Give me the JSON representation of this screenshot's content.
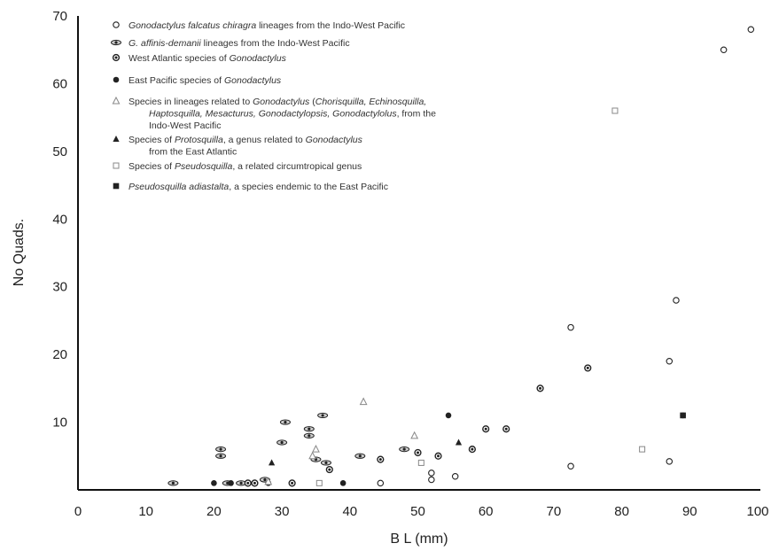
{
  "chart_data": {
    "type": "scatter",
    "xlabel": "B L (mm)",
    "ylabel": "No Quads.",
    "xlim": [
      0,
      100
    ],
    "ylim": [
      0,
      70
    ],
    "xticks": [
      "0",
      "10",
      "20",
      "30",
      "40",
      "50",
      "60",
      "70",
      "80",
      "90",
      "100"
    ],
    "yticks": [
      "10",
      "20",
      "30",
      "40",
      "50",
      "60",
      "70"
    ],
    "legend_position": "top-left",
    "series": [
      {
        "name": "Gonodactylus falcatus chiragra lineages from the Indo-West Pacific",
        "marker": "open-circle",
        "points": [
          [
            44.5,
            1
          ],
          [
            52,
            1.5
          ],
          [
            52,
            2.5
          ],
          [
            55.5,
            2
          ],
          [
            72.5,
            3.5
          ],
          [
            87,
            4.2
          ],
          [
            72.5,
            24
          ],
          [
            87,
            19
          ],
          [
            88,
            28
          ],
          [
            95,
            65
          ],
          [
            99,
            68
          ]
        ]
      },
      {
        "name": "G. affinis-demanii lineages from the Indo-West Pacific",
        "marker": "eye",
        "points": [
          [
            14,
            1
          ],
          [
            21,
            6
          ],
          [
            21,
            5
          ],
          [
            22,
            1
          ],
          [
            24,
            1
          ],
          [
            27.5,
            1.5
          ],
          [
            30.5,
            10
          ],
          [
            30,
            7
          ],
          [
            36,
            11
          ],
          [
            34,
            9
          ],
          [
            34,
            8
          ],
          [
            35,
            4.5
          ],
          [
            36.5,
            4
          ],
          [
            41.5,
            5
          ],
          [
            48,
            6
          ]
        ]
      },
      {
        "name": "West Atlantic species of Gonodactylus",
        "marker": "target",
        "points": [
          [
            25,
            1
          ],
          [
            26,
            1
          ],
          [
            31.5,
            1
          ],
          [
            37,
            3
          ],
          [
            44.5,
            4.5
          ],
          [
            50,
            5.5
          ],
          [
            53,
            5
          ],
          [
            58,
            6
          ],
          [
            60,
            9
          ],
          [
            63,
            9
          ],
          [
            68,
            15
          ],
          [
            75,
            18
          ]
        ]
      },
      {
        "name": "East Pacific species of Gonodactylus",
        "marker": "filled-circle",
        "points": [
          [
            20,
            1
          ],
          [
            22.5,
            1
          ],
          [
            28,
            1
          ],
          [
            39,
            1
          ],
          [
            54.5,
            11
          ],
          [
            89,
            11
          ]
        ]
      },
      {
        "name": "Species in lineages related to Gonodactylus (Chorisquilla, Echinosquilla, Haptosquilla, Mesacturus, Gonodactylopsis, Gonodactylolus) from the Indo-West Pacific",
        "marker": "open-triangle",
        "points": [
          [
            28,
            1.2
          ],
          [
            34.5,
            5
          ],
          [
            35,
            6
          ],
          [
            42,
            13
          ],
          [
            49.5,
            8
          ]
        ]
      },
      {
        "name": "Species of Protosquilla, a genus related to Gonodactylus from the East Atlantic",
        "marker": "filled-triangle",
        "points": [
          [
            28.5,
            4
          ],
          [
            56,
            7
          ]
        ]
      },
      {
        "name": "Species of Pseudosquilla, a related circumtropical genus",
        "marker": "open-square",
        "points": [
          [
            35.5,
            1
          ],
          [
            50.5,
            4
          ],
          [
            79,
            56
          ],
          [
            83,
            6
          ]
        ]
      },
      {
        "name": "Pseudosquilla adiastalta, a species endemic to the East Pacific",
        "marker": "filled-square",
        "points": [
          [
            89,
            11
          ]
        ]
      }
    ],
    "legend": [
      {
        "marker": "open-circle",
        "parts": [
          [
            "Gonodactylus falcatus chiragra",
            true
          ],
          [
            " lineages from the Indo-West Pacific",
            false
          ]
        ]
      },
      {
        "marker": "eye",
        "parts": [
          [
            "G. affinis-demanii",
            true
          ],
          [
            " lineages from the Indo-West Pacific",
            false
          ]
        ]
      },
      {
        "marker": "target",
        "parts": [
          [
            "West Atlantic species of ",
            false
          ],
          [
            "Gonodactylus",
            true
          ]
        ]
      },
      {
        "marker": "filled-circle",
        "parts": [
          [
            "East Pacific species of ",
            false
          ],
          [
            "Gonodactylus",
            true
          ]
        ]
      },
      {
        "marker": "open-triangle",
        "parts": [
          [
            "Species in lineages related to ",
            false
          ],
          [
            "Gonodactylus",
            true
          ],
          [
            " (",
            false
          ],
          [
            "Chorisquilla, Echinosquilla,",
            true
          ]
        ],
        "cont": [
          [
            [
              "Haptosquilla, Mesacturus, Gonodactylopsis, Gonodactylolus",
              true
            ],
            [
              ", from the",
              false
            ]
          ],
          [
            [
              "Indo-West Pacific",
              false
            ]
          ]
        ]
      },
      {
        "marker": "filled-triangle",
        "parts": [
          [
            "Species of ",
            false
          ],
          [
            "Protosquilla",
            true
          ],
          [
            ", a genus related to ",
            false
          ],
          [
            "Gonodactylus",
            true
          ]
        ],
        "cont": [
          [
            [
              "from the East Atlantic",
              false
            ]
          ]
        ]
      },
      {
        "marker": "open-square",
        "parts": [
          [
            "Species of ",
            false
          ],
          [
            "Pseudosquilla",
            true
          ],
          [
            ", a related circumtropical genus",
            false
          ]
        ]
      },
      {
        "marker": "filled-square",
        "parts": [
          [
            "Pseudosquilla adiastalta",
            true
          ],
          [
            ", a species endemic to the East Pacific",
            false
          ]
        ]
      }
    ]
  }
}
